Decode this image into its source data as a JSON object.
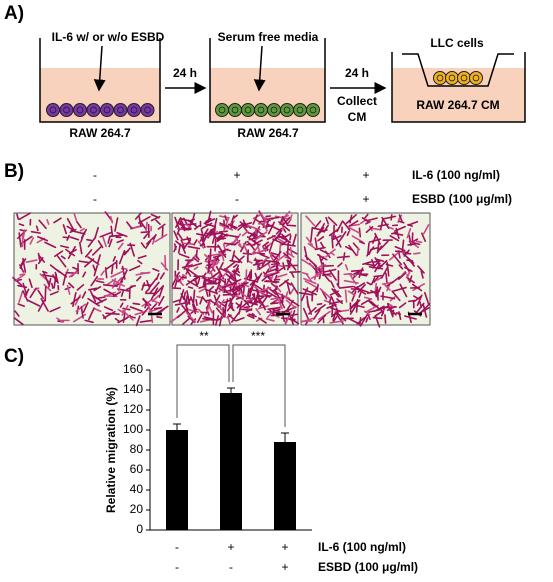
{
  "panel_a": {
    "label": "A)",
    "step1_treatment": "IL-6 w/ or w/o ESBD",
    "step1_cells": "RAW 264.7",
    "arrow1": "24 h",
    "step2_treatment": "Serum free media",
    "step2_cells": "RAW 264.7",
    "arrow2": "24 h",
    "arrow2_note": [
      "Collect",
      "CM"
    ],
    "step3_insert": "LLC cells",
    "step3_well": "RAW 264.7 CM"
  },
  "panel_b": {
    "label": "B)",
    "treatments": [
      {
        "name": "IL-6 (100 ng/ml)",
        "marks": [
          "-",
          "+",
          "+"
        ]
      },
      {
        "name": "ESBD (100 μg/ml)",
        "marks": [
          "-",
          "-",
          "+"
        ]
      }
    ]
  },
  "chart_data": {
    "type": "bar",
    "panel_label": "C)",
    "y_label": "Relative migration (%)",
    "categories": [
      null,
      null,
      null
    ],
    "values": [
      100,
      137,
      88
    ],
    "errors": [
      6,
      5,
      9
    ],
    "color": "#000000",
    "ylim": [
      0,
      160
    ],
    "yticks": [
      0,
      20,
      40,
      60,
      80,
      100,
      120,
      140,
      160
    ],
    "significance": [
      "**",
      "***"
    ],
    "treatments": [
      {
        "name": "IL-6 (100 ng/ml)",
        "marks": [
          "-",
          "+",
          "+"
        ]
      },
      {
        "name": "ESBD (100 μg/ml)",
        "marks": [
          "-",
          "-",
          "+"
        ]
      }
    ]
  }
}
